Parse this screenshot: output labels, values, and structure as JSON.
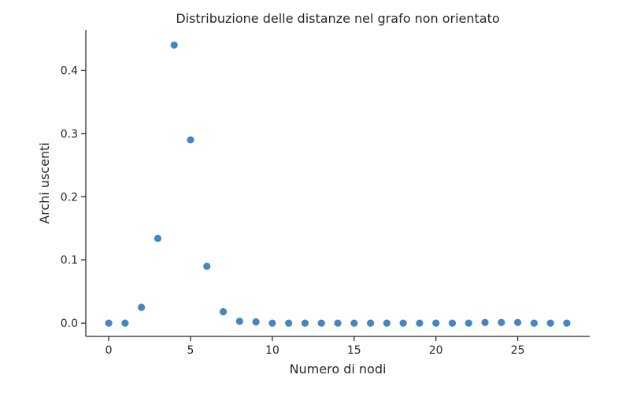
{
  "chart_data": {
    "type": "scatter",
    "title": "Distribuzione delle distanze nel grafo non orientato",
    "xlabel": "Numero di nodi",
    "ylabel": "Archi uscenti",
    "xlim": [
      -1.4,
      29.4
    ],
    "ylim": [
      -0.021,
      0.464
    ],
    "xticks": [
      0,
      5,
      10,
      15,
      20,
      25
    ],
    "yticks": [
      0.0,
      0.1,
      0.2,
      0.3,
      0.4
    ],
    "ytick_labels": [
      "0.0",
      "0.1",
      "0.2",
      "0.3",
      "0.4"
    ],
    "grid": false,
    "legend": "none",
    "color": "#3a7fbf",
    "x": [
      0,
      1,
      2,
      3,
      4,
      5,
      6,
      7,
      8,
      9,
      10,
      11,
      12,
      13,
      14,
      15,
      16,
      17,
      18,
      19,
      20,
      21,
      22,
      23,
      24,
      25,
      26,
      27,
      28
    ],
    "y": [
      0.0,
      0.0,
      0.025,
      0.134,
      0.44,
      0.29,
      0.09,
      0.018,
      0.003,
      0.002,
      0.0,
      0.0,
      0.0,
      0.0,
      0.0,
      0.0,
      0.0,
      0.0,
      0.0,
      0.0,
      0.0,
      0.0,
      0.0,
      0.001,
      0.001,
      0.001,
      0.0,
      0.0,
      0.0
    ]
  }
}
